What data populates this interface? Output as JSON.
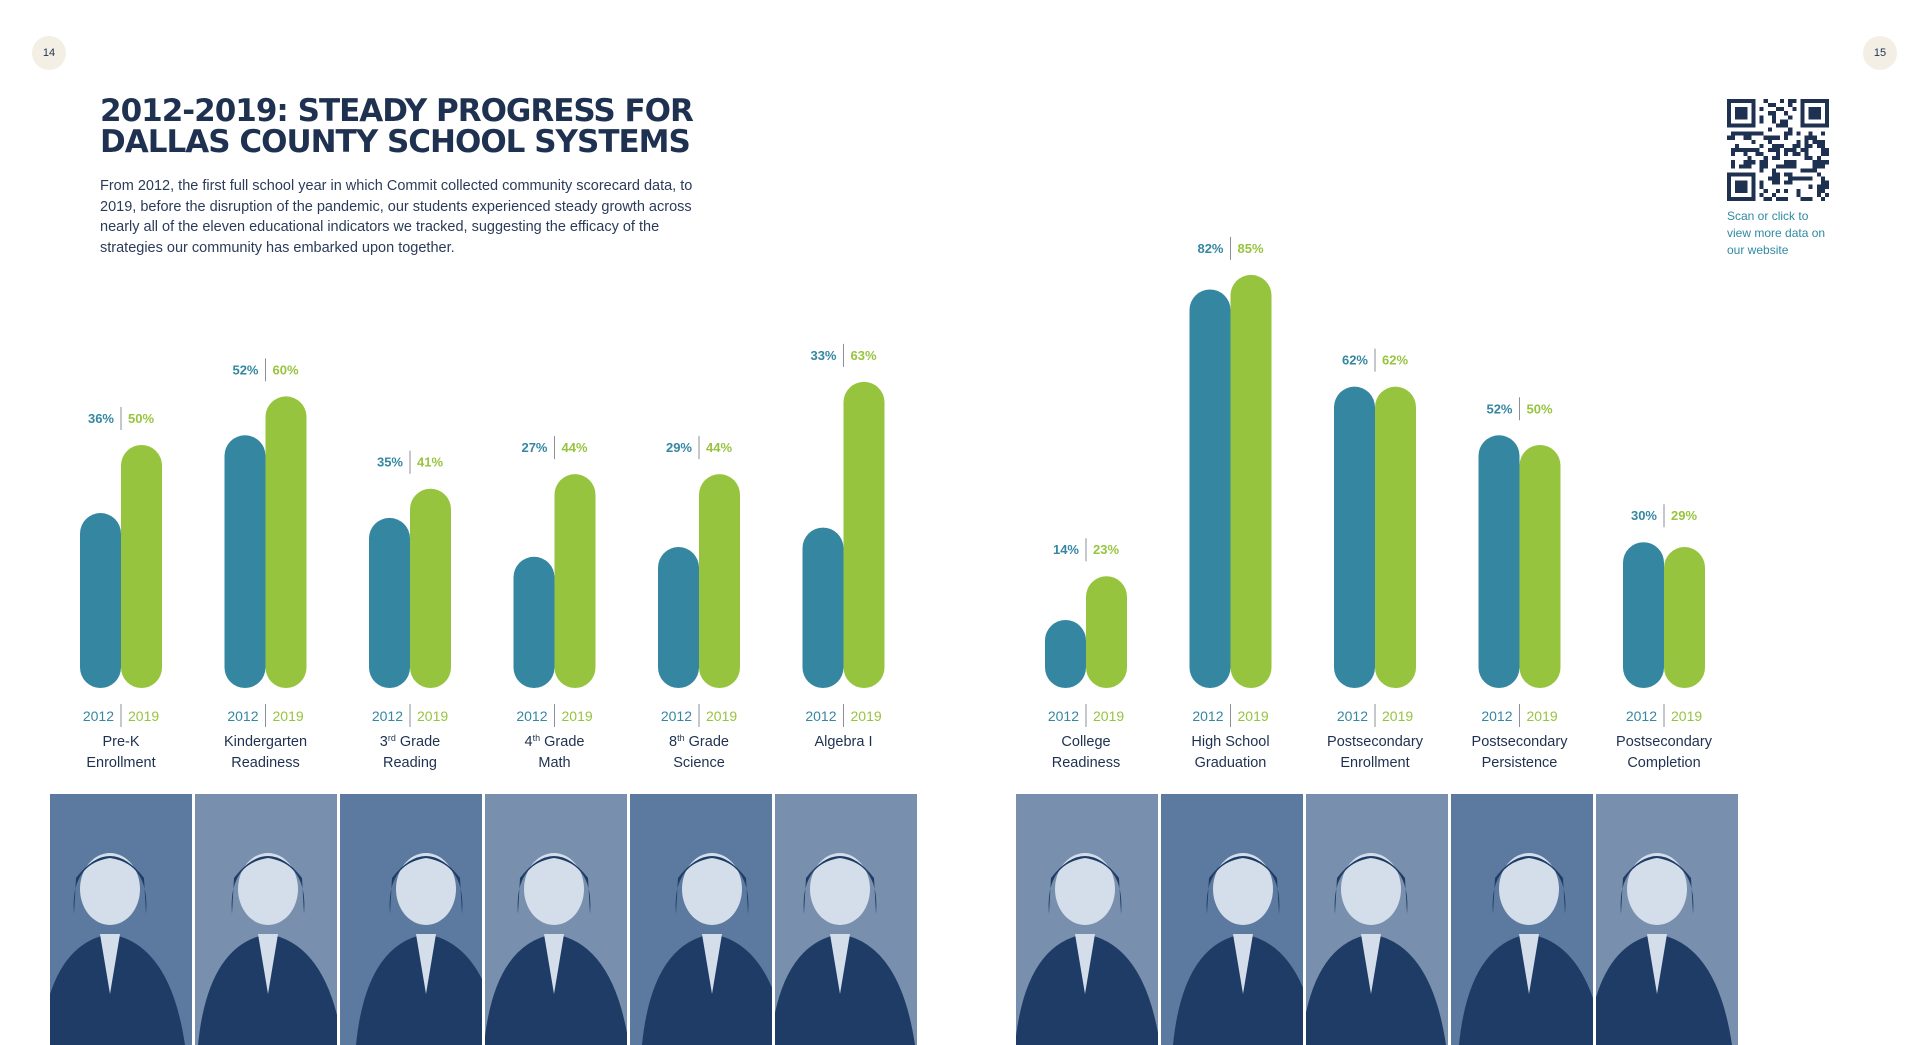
{
  "page_numbers": {
    "left": "14",
    "right": "15"
  },
  "title_lines": [
    "2012-2019: STEADY PROGRESS FOR",
    "DALLAS COUNTY SCHOOL SYSTEMS"
  ],
  "intro": "From 2012, the first full school year in which Commit collected community scorecard data, to 2019, before the disruption of the pandemic, our students experienced steady growth across nearly all of the eleven educational indicators we tracked, suggesting the efficacy of the strategies our community has embarked upon together.",
  "qr_caption_lines": [
    "Scan or click to",
    "view more data on",
    "our website"
  ],
  "colors": {
    "y2012": "#3587a1",
    "y2019": "#97c43e",
    "navy": "#1f3150",
    "photo_dark": "#1e3c66",
    "photo_light": "#a9bdd3"
  },
  "chart_data": {
    "type": "bar",
    "ylim": [
      0,
      100
    ],
    "series_labels": [
      "2012",
      "2019"
    ],
    "categories": [
      {
        "line1": "Pre-K",
        "line2": "Enrollment"
      },
      {
        "line1": "Kindergarten",
        "line2": "Readiness"
      },
      {
        "line1": "3",
        "sup": "rd",
        "line1_rest": " Grade",
        "line2": "Reading"
      },
      {
        "line1": "4",
        "sup": "th",
        "line1_rest": " Grade",
        "line2": "Math"
      },
      {
        "line1": "8",
        "sup": "th",
        "line1_rest": " Grade",
        "line2": "Science"
      },
      {
        "line1": "Algebra I",
        "line2": ""
      },
      {
        "line1": "College",
        "line2": "Readiness"
      },
      {
        "line1": "High School",
        "line2": "Graduation"
      },
      {
        "line1": "Postsecondary",
        "line2": "Enrollment"
      },
      {
        "line1": "Postsecondary",
        "line2": "Persistence"
      },
      {
        "line1": "Postsecondary",
        "line2": "Completion"
      }
    ],
    "series": [
      {
        "name": "2012",
        "values": [
          36,
          52,
          35,
          27,
          29,
          33,
          14,
          82,
          62,
          52,
          30
        ],
        "labels": [
          "36%",
          "52%",
          "35%",
          "27%",
          "29%",
          "33%",
          "14%",
          "82%",
          "62%",
          "52%",
          "30%"
        ]
      },
      {
        "name": "2019",
        "values": [
          50,
          60,
          41,
          44,
          44,
          63,
          23,
          85,
          62,
          50,
          29
        ],
        "labels": [
          "50%",
          "60%",
          "41%",
          "44%",
          "44%",
          "63%",
          "23%",
          "85%",
          "62%",
          "50%",
          "29%"
        ]
      }
    ]
  },
  "photos_left": [
    "photo-student-pre-k",
    "photo-student-kindergarten",
    "photo-student-3rd-grade",
    "photo-student-4th-grade",
    "photo-student-8th-grade",
    "photo-student-algebra"
  ],
  "photos_right": [
    "photo-student-college",
    "photo-student-graduate",
    "photo-student-enrollment",
    "photo-student-persistence",
    "photo-student-completion"
  ]
}
